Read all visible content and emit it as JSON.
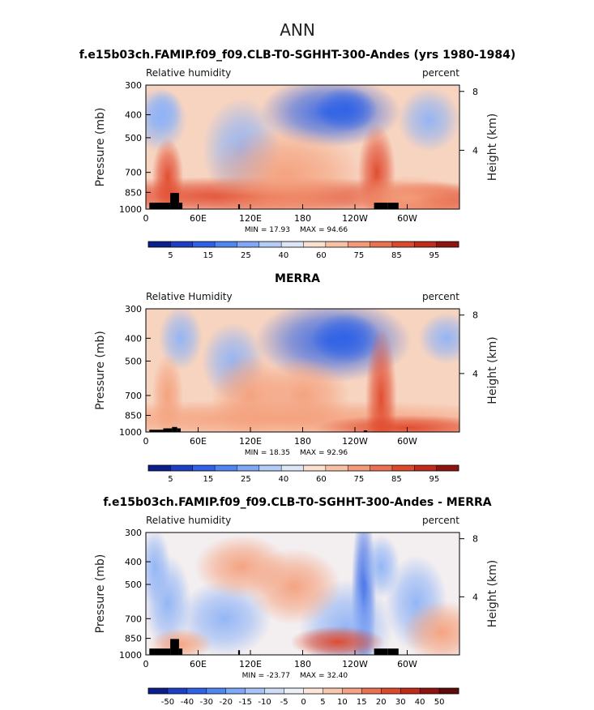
{
  "figure": {
    "title": "ANN"
  },
  "axes_common": {
    "x_ticks": [
      {
        "lon": 0,
        "label": "0"
      },
      {
        "lon": 60,
        "label": "60E"
      },
      {
        "lon": 120,
        "label": "120E"
      },
      {
        "lon": 180,
        "label": "180"
      },
      {
        "lon": 240,
        "label": "120W"
      },
      {
        "lon": 300,
        "label": "60W"
      }
    ],
    "y_ticks": [
      {
        "p": 300,
        "label": "300"
      },
      {
        "p": 400,
        "label": "400"
      },
      {
        "p": 500,
        "label": "500"
      },
      {
        "p": 700,
        "label": "700"
      },
      {
        "p": 850,
        "label": "850"
      },
      {
        "p": 1000,
        "label": "1000"
      }
    ],
    "height_ticks": [
      {
        "km": 4,
        "label": "4"
      },
      {
        "km": 8,
        "label": "8"
      }
    ],
    "ylabel": "Pressure (mb)",
    "ylabel2": "Height (km)",
    "xlim": [
      0,
      360
    ],
    "ylim": [
      1000,
      300
    ]
  },
  "chart_data": [
    {
      "type": "heatmap",
      "title": "f.e15b03ch.FAMIP.f09_f09.CLB-T0-SGHHT-300-Andes (yrs 1980-1984)",
      "left_label": "Relative humidity",
      "right_label": "percent",
      "min_text": "MIN =   17.93",
      "max_text": "MAX =   94.66",
      "min": 17.93,
      "max": 94.66,
      "colorbar_labels": [
        "5",
        "15",
        "25",
        "40",
        "60",
        "75",
        "85",
        "95"
      ]
    },
    {
      "type": "heatmap",
      "title": "MERRA",
      "left_label": "Relative Humidity",
      "right_label": "percent",
      "min_text": "MIN =   18.35",
      "max_text": "MAX =   92.96",
      "min": 18.35,
      "max": 92.96,
      "colorbar_labels": [
        "5",
        "15",
        "25",
        "40",
        "60",
        "75",
        "85",
        "95"
      ]
    },
    {
      "type": "heatmap",
      "title": "f.e15b03ch.FAMIP.f09_f09.CLB-T0-SGHHT-300-Andes - MERRA",
      "left_label": "Relative humidity",
      "right_label": "percent",
      "min_text": "MIN = -23.77",
      "max_text": "MAX =   32.40",
      "min": -23.77,
      "max": 32.4,
      "colorbar_labels": [
        "-50",
        "-40",
        "-30",
        "-20",
        "-15",
        "-10",
        "-5",
        "0",
        "5",
        "10",
        "15",
        "20",
        "30",
        "40",
        "50"
      ]
    }
  ],
  "colors": {
    "seq": [
      "#0a1e8c",
      "#1c3fc4",
      "#2f62e6",
      "#4f86f2",
      "#7fa9f7",
      "#b3ccf8",
      "#dde6f7",
      "#fbe0d0",
      "#f8c0a4",
      "#f39a78",
      "#ea7152",
      "#dc4a2e",
      "#bf2c1c",
      "#8e1410"
    ],
    "div": [
      "#0a1e8c",
      "#1c3fc4",
      "#2f62e6",
      "#4f86f2",
      "#7fa9f7",
      "#a8c4f7",
      "#cfdcf7",
      "#eef0f7",
      "#fbe6d8",
      "#f8c8ae",
      "#f3a383",
      "#ea7152",
      "#dc4a2e",
      "#bf2c1c",
      "#8e1410",
      "#5e0a08"
    ]
  }
}
